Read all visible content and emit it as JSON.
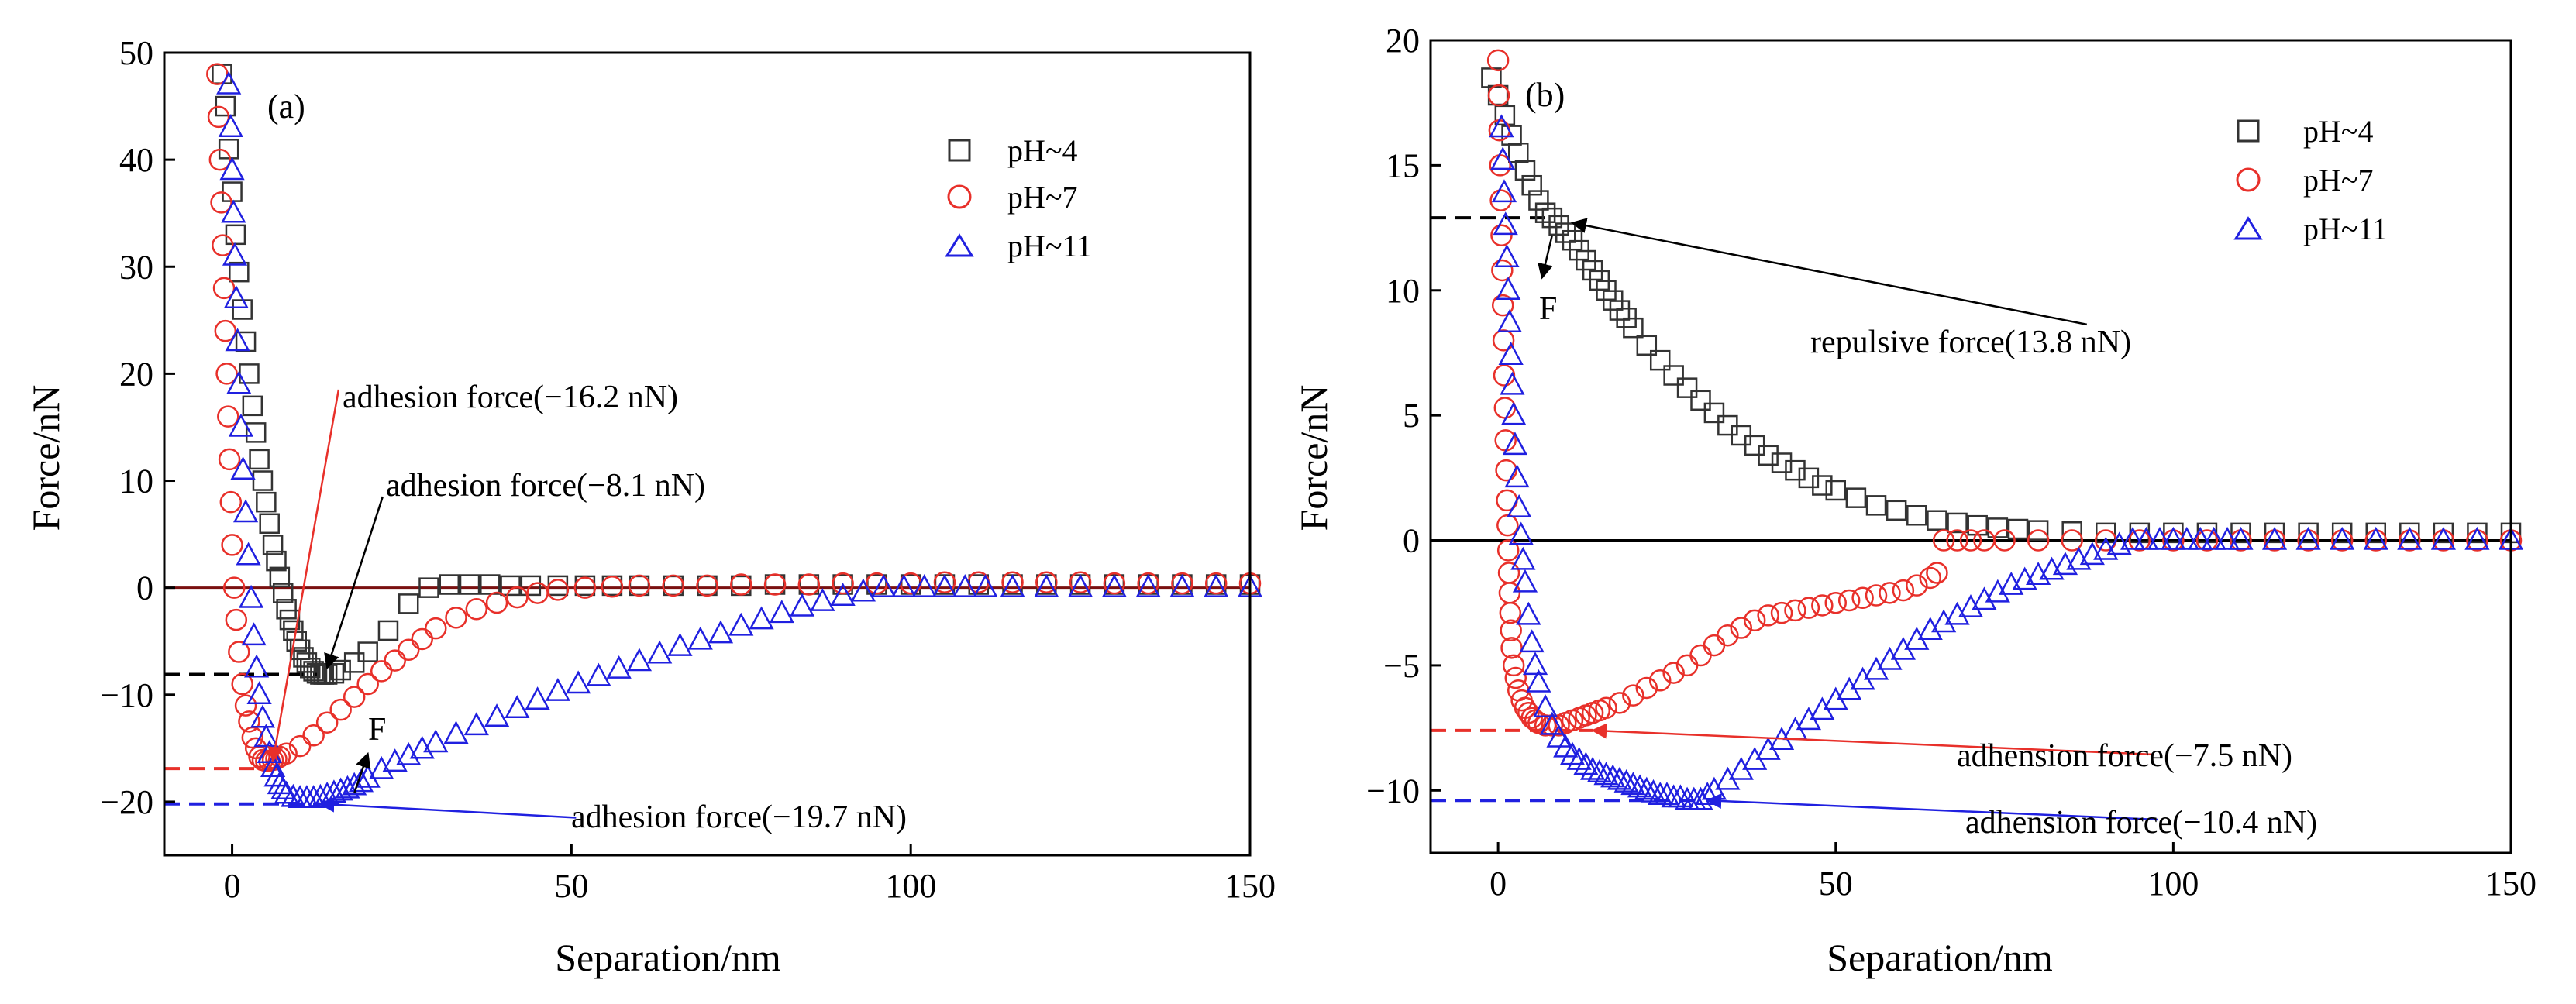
{
  "chart_data": [
    {
      "type": "scatter",
      "panel": "(a)",
      "xlabel": "Separation/nm",
      "ylabel": "Force/nN",
      "xlim": [
        -10,
        150
      ],
      "ylim": [
        -25,
        50
      ],
      "xticks": [
        0,
        50,
        100,
        150
      ],
      "yticks": [
        -20,
        -10,
        0,
        10,
        20,
        30,
        40,
        50
      ],
      "legend_position": "top-right",
      "zero_line_color": "#7a1010",
      "series": [
        {
          "name": "pH~4",
          "marker": "square",
          "color": "#333333",
          "x": [
            -1.5,
            -1,
            -0.5,
            0,
            0.5,
            1,
            1.5,
            2,
            2.5,
            3,
            3.5,
            4,
            4.5,
            5,
            5.5,
            6,
            6.5,
            7,
            7.5,
            8,
            8.5,
            9,
            9.5,
            10,
            10.5,
            11,
            11.5,
            12,
            12.5,
            13,
            13.5,
            14,
            15,
            16,
            18,
            20,
            23,
            26,
            29,
            32,
            35,
            38,
            41,
            44,
            48,
            52,
            56,
            60,
            65,
            70,
            75,
            80,
            85,
            90,
            95,
            100,
            105,
            110,
            115,
            120,
            125,
            130,
            135,
            140,
            145,
            150
          ],
          "y": [
            48,
            45,
            41,
            37,
            33,
            29.5,
            26,
            23,
            20,
            17,
            14.5,
            12,
            10,
            8,
            6,
            4,
            2.5,
            1,
            -0.5,
            -2,
            -3,
            -4,
            -5,
            -5.8,
            -6.5,
            -7,
            -7.5,
            -7.8,
            -8,
            -8.1,
            -8.1,
            -8.1,
            -8,
            -7.7,
            -7,
            -6,
            -4,
            -1.5,
            0,
            0.3,
            0.3,
            0.3,
            0.2,
            0.2,
            0.2,
            0.2,
            0.2,
            0.2,
            0.2,
            0.2,
            0.2,
            0.3,
            0.3,
            0.3,
            0.3,
            0.3,
            0.3,
            0.3,
            0.3,
            0.3,
            0.3,
            0.3,
            0.3,
            0.3,
            0.3,
            0.3
          ]
        },
        {
          "name": "pH~7",
          "marker": "circle",
          "color": "#e8302a",
          "x": [
            -2.2,
            -2,
            -1.8,
            -1.6,
            -1.4,
            -1.2,
            -1,
            -0.8,
            -0.6,
            -0.4,
            -0.2,
            0,
            0.3,
            0.6,
            1,
            1.5,
            2,
            2.5,
            3,
            3.5,
            4,
            4.5,
            5,
            5.5,
            6,
            6.5,
            7,
            8,
            10,
            12,
            14,
            16,
            18,
            20,
            22,
            24,
            26,
            28,
            30,
            33,
            36,
            39,
            42,
            45,
            48,
            52,
            56,
            60,
            65,
            70,
            75,
            80,
            85,
            90,
            95,
            100,
            105,
            110,
            115,
            120,
            125,
            130,
            135,
            140,
            145,
            150
          ],
          "y": [
            48,
            44,
            40,
            36,
            32,
            28,
            24,
            20,
            16,
            12,
            8,
            4,
            0,
            -3,
            -6,
            -9,
            -11,
            -12.5,
            -14,
            -15,
            -15.8,
            -16.1,
            -16.2,
            -16.2,
            -16.1,
            -16,
            -15.8,
            -15.5,
            -14.8,
            -13.8,
            -12.6,
            -11.4,
            -10.2,
            -9,
            -7.8,
            -6.8,
            -5.8,
            -4.8,
            -3.8,
            -2.8,
            -2,
            -1.4,
            -0.9,
            -0.5,
            -0.2,
            0,
            0.1,
            0.2,
            0.2,
            0.2,
            0.3,
            0.3,
            0.3,
            0.4,
            0.4,
            0.4,
            0.5,
            0.5,
            0.5,
            0.5,
            0.5,
            0.4,
            0.4,
            0.4,
            0.4,
            0.4
          ]
        },
        {
          "name": "pH~11",
          "marker": "triangle",
          "color": "#2020e0",
          "x": [
            -0.5,
            -0.2,
            0,
            0.2,
            0.4,
            0.6,
            0.8,
            1,
            1.3,
            1.6,
            2,
            2.4,
            2.8,
            3.2,
            3.6,
            4,
            4.5,
            5,
            5.5,
            6,
            6.5,
            7,
            7.5,
            8,
            9,
            10,
            11,
            12,
            13,
            14,
            15,
            16,
            17,
            18,
            19,
            20,
            22,
            24,
            26,
            28,
            30,
            33,
            36,
            39,
            42,
            45,
            48,
            51,
            54,
            57,
            60,
            63,
            66,
            69,
            72,
            75,
            78,
            81,
            84,
            87,
            90,
            93,
            96,
            99,
            102,
            105,
            108,
            111,
            115,
            120,
            125,
            130,
            135,
            140,
            145,
            150
          ],
          "y": [
            47,
            43,
            39,
            35,
            31,
            27,
            23,
            19,
            15,
            11,
            7,
            3,
            -1,
            -4.5,
            -7.5,
            -10,
            -12.2,
            -14,
            -15.5,
            -16.8,
            -17.7,
            -18.4,
            -18.9,
            -19.3,
            -19.6,
            -19.7,
            -19.7,
            -19.7,
            -19.6,
            -19.4,
            -19.2,
            -19,
            -18.8,
            -18.5,
            -18.2,
            -17.8,
            -17,
            -16.3,
            -15.7,
            -15.1,
            -14.5,
            -13.7,
            -12.9,
            -12.1,
            -11.3,
            -10.5,
            -9.7,
            -9,
            -8.3,
            -7.6,
            -6.9,
            -6.2,
            -5.5,
            -4.9,
            -4.3,
            -3.6,
            -3,
            -2.4,
            -1.8,
            -1.3,
            -0.8,
            -0.4,
            0,
            0,
            0,
            0,
            0,
            0,
            0,
            0,
            0,
            0,
            0,
            0,
            0,
            0
          ]
        }
      ],
      "reference_lines": [
        {
          "y": -8.1,
          "x_end": 13,
          "color": "#000000"
        },
        {
          "y": -16.9,
          "x_end": 7,
          "color": "#e8302a"
        },
        {
          "y": -20.2,
          "x_end": 13,
          "color": "#2020e0"
        }
      ],
      "annotations": [
        {
          "text": "adhesion force(−16.2 nN)",
          "x": 15,
          "y": 17.5,
          "arrow_to": [
            6,
            -16.2
          ],
          "color": "#e8302a"
        },
        {
          "text": "adhesion force(−8.1 nN)",
          "x": 21.5,
          "y": 7.5,
          "arrow_to": [
            14,
            -7.5
          ],
          "color": "#000000"
        },
        {
          "text": "adhesion force(−19.7 nN)",
          "x": 50,
          "y": -22.5,
          "arrow_to": [
            13,
            -20.2
          ],
          "color": "#2020e0"
        },
        {
          "text": "F",
          "x": 20,
          "y": -13.8,
          "arrow_from": [
            18,
            -19.2
          ],
          "arrow_to": [
            20,
            -15.5
          ],
          "color": "#000000"
        }
      ]
    },
    {
      "type": "scatter",
      "panel": "(b)",
      "xlabel": "Separation/nm",
      "ylabel": "Force/nN",
      "xlim": [
        -10,
        150
      ],
      "ylim": [
        -12.5,
        20
      ],
      "xticks": [
        0,
        50,
        100,
        150
      ],
      "yticks": [
        -10,
        -5,
        0,
        5,
        10,
        15,
        20
      ],
      "legend_position": "top-right",
      "zero_line_color": "#000000",
      "series": [
        {
          "name": "pH~4",
          "marker": "square",
          "color": "#333333",
          "x": [
            -1,
            0,
            1,
            2,
            3,
            4,
            5,
            6,
            7,
            8,
            9,
            10,
            11,
            12,
            13,
            14,
            15,
            16,
            17,
            18,
            19,
            20,
            22,
            24,
            26,
            28,
            30,
            32,
            34,
            36,
            38,
            40,
            42,
            44,
            46,
            48,
            50,
            53,
            56,
            59,
            62,
            65,
            68,
            71,
            74,
            77,
            80,
            85,
            90,
            95,
            100,
            105,
            110,
            115,
            120,
            125,
            130,
            135,
            140,
            145,
            150
          ],
          "y": [
            18.5,
            17.8,
            17,
            16.2,
            15.5,
            14.8,
            14.2,
            13.6,
            13.1,
            12.9,
            12.6,
            12.3,
            12,
            11.6,
            11.2,
            10.8,
            10.4,
            10,
            9.6,
            9.2,
            8.9,
            8.5,
            7.8,
            7.2,
            6.6,
            6.1,
            5.6,
            5.1,
            4.6,
            4.2,
            3.8,
            3.4,
            3.1,
            2.8,
            2.5,
            2.2,
            2,
            1.7,
            1.4,
            1.2,
            1,
            0.8,
            0.7,
            0.6,
            0.5,
            0.45,
            0.4,
            0.35,
            0.3,
            0.3,
            0.3,
            0.3,
            0.3,
            0.3,
            0.3,
            0.3,
            0.3,
            0.3,
            0.3,
            0.3,
            0.3
          ]
        },
        {
          "name": "pH~7",
          "marker": "circle",
          "color": "#e8302a",
          "x": [
            0,
            0.1,
            0.2,
            0.3,
            0.4,
            0.5,
            0.6,
            0.7,
            0.8,
            0.9,
            1,
            1.1,
            1.2,
            1.3,
            1.4,
            1.5,
            1.6,
            1.7,
            1.8,
            1.9,
            2,
            2.3,
            2.6,
            3,
            3.5,
            4,
            4.5,
            5,
            5.5,
            6,
            7,
            8,
            9,
            10,
            11,
            12,
            13,
            14,
            15,
            16,
            18,
            20,
            22,
            24,
            26,
            28,
            30,
            32,
            34,
            36,
            38,
            40,
            42,
            44,
            46,
            48,
            50,
            52,
            54,
            56,
            58,
            60,
            62,
            64,
            65,
            66,
            68,
            70,
            72,
            75,
            80,
            85,
            90,
            95,
            100,
            105,
            110,
            115,
            120,
            125,
            130,
            135,
            140,
            145,
            150
          ],
          "y": [
            19.2,
            17.8,
            16.4,
            15,
            13.6,
            12.2,
            10.8,
            9.4,
            8,
            6.6,
            5.3,
            4,
            2.8,
            1.6,
            0.6,
            -0.4,
            -1.3,
            -2.1,
            -2.9,
            -3.6,
            -4.3,
            -5,
            -5.5,
            -6,
            -6.4,
            -6.7,
            -6.9,
            -7.1,
            -7.2,
            -7.3,
            -7.4,
            -7.4,
            -7.4,
            -7.3,
            -7.2,
            -7.1,
            -7,
            -6.9,
            -6.8,
            -6.7,
            -6.5,
            -6.2,
            -5.9,
            -5.6,
            -5.3,
            -5,
            -4.6,
            -4.2,
            -3.8,
            -3.5,
            -3.2,
            -3,
            -2.9,
            -2.8,
            -2.7,
            -2.6,
            -2.5,
            -2.4,
            -2.3,
            -2.2,
            -2.1,
            -2,
            -1.8,
            -1.5,
            -1.3,
            0,
            0,
            0,
            0,
            0,
            0,
            0,
            0,
            0,
            0,
            0,
            0,
            0,
            0,
            0,
            0,
            0,
            0,
            0,
            0
          ]
        },
        {
          "name": "pH~11",
          "marker": "triangle",
          "color": "#2020e0",
          "x": [
            0.5,
            0.7,
            0.9,
            1.1,
            1.3,
            1.5,
            1.7,
            1.9,
            2.1,
            2.3,
            2.5,
            2.8,
            3.1,
            3.4,
            3.7,
            4,
            4.5,
            5,
            5.5,
            6,
            7,
            8,
            9,
            10,
            11,
            12,
            13,
            14,
            15,
            16,
            17,
            18,
            19,
            20,
            21,
            22,
            23,
            24,
            25,
            26,
            27,
            28,
            29,
            30,
            31,
            32,
            34,
            36,
            38,
            40,
            42,
            44,
            46,
            48,
            50,
            52,
            54,
            56,
            58,
            60,
            62,
            64,
            66,
            68,
            70,
            72,
            74,
            76,
            78,
            80,
            82,
            84,
            86,
            88,
            90,
            92,
            94,
            96,
            98,
            100,
            102,
            104,
            106,
            108,
            110,
            115,
            120,
            125,
            130,
            135,
            140,
            145,
            150
          ],
          "y": [
            16.5,
            15.2,
            13.9,
            12.6,
            11.3,
            10,
            8.7,
            7.4,
            6.2,
            5,
            3.8,
            2.5,
            1.3,
            0.2,
            -0.8,
            -1.7,
            -3,
            -4.1,
            -5,
            -5.7,
            -6.7,
            -7.4,
            -7.9,
            -8.3,
            -8.6,
            -8.8,
            -9,
            -9.2,
            -9.3,
            -9.4,
            -9.5,
            -9.6,
            -9.7,
            -9.8,
            -9.9,
            -10,
            -10.1,
            -10.2,
            -10.2,
            -10.3,
            -10.3,
            -10.4,
            -10.4,
            -10.4,
            -10.2,
            -10,
            -9.6,
            -9.2,
            -8.8,
            -8.4,
            -8,
            -7.6,
            -7.2,
            -6.8,
            -6.4,
            -6,
            -5.6,
            -5.2,
            -4.8,
            -4.4,
            -4,
            -3.6,
            -3.3,
            -3,
            -2.7,
            -2.4,
            -2.1,
            -1.8,
            -1.6,
            -1.4,
            -1.2,
            -1,
            -0.8,
            -0.6,
            -0.4,
            -0.2,
            0,
            0,
            0,
            0,
            0,
            0,
            0,
            0,
            0,
            0,
            0,
            0,
            0,
            0,
            0,
            0,
            0
          ]
        }
      ],
      "reference_lines": [
        {
          "y": 12.9,
          "x_end": 7,
          "color": "#000000"
        },
        {
          "y": -7.6,
          "x_end": 14,
          "color": "#e8302a"
        },
        {
          "y": -10.4,
          "x_end": 30,
          "color": "#2020e0"
        }
      ],
      "annotations": [
        {
          "text": "repulsive force(13.8 nN)",
          "x": 86.5,
          "y": 8.2,
          "arrow_to": [
            11,
            12.7
          ],
          "color": "#000000"
        },
        {
          "text": "adhension force(−7.5 nN)",
          "x": 96.5,
          "y": -9,
          "arrow_to": [
            14,
            -7.6
          ],
          "color": "#e8302a"
        },
        {
          "text": "adhension force(−10.4 nN)",
          "x": 97,
          "y": -11.6,
          "arrow_to": [
            31,
            -10.4
          ],
          "color": "#2020e0"
        },
        {
          "text": "F",
          "x": 6.5,
          "y": 9.7,
          "arrow_from": [
            8,
            12.2
          ],
          "arrow_to": [
            6.5,
            10.5
          ],
          "color": "#000000"
        }
      ]
    }
  ]
}
